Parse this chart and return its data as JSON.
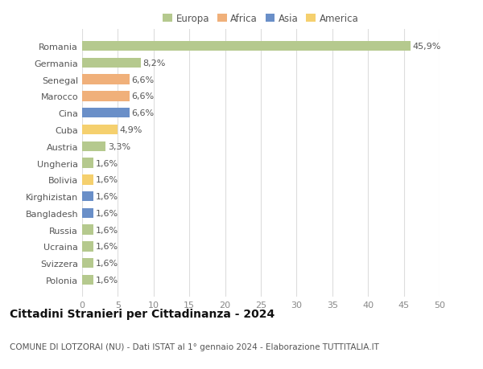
{
  "countries": [
    "Romania",
    "Germania",
    "Senegal",
    "Marocco",
    "Cina",
    "Cuba",
    "Austria",
    "Ungheria",
    "Bolivia",
    "Kirghizistan",
    "Bangladesh",
    "Russia",
    "Ucraina",
    "Svizzera",
    "Polonia"
  ],
  "values": [
    45.9,
    8.2,
    6.6,
    6.6,
    6.6,
    4.9,
    3.3,
    1.6,
    1.6,
    1.6,
    1.6,
    1.6,
    1.6,
    1.6,
    1.6
  ],
  "labels": [
    "45,9%",
    "8,2%",
    "6,6%",
    "6,6%",
    "6,6%",
    "4,9%",
    "3,3%",
    "1,6%",
    "1,6%",
    "1,6%",
    "1,6%",
    "1,6%",
    "1,6%",
    "1,6%",
    "1,6%"
  ],
  "continents": [
    "Europa",
    "Europa",
    "Africa",
    "Africa",
    "Asia",
    "America",
    "Europa",
    "Europa",
    "America",
    "Asia",
    "Asia",
    "Europa",
    "Europa",
    "Europa",
    "Europa"
  ],
  "continent_colors": {
    "Europa": "#b5c98e",
    "Africa": "#f0b07a",
    "Asia": "#6a8fc8",
    "America": "#f5d06e"
  },
  "legend_items": [
    "Europa",
    "Africa",
    "Asia",
    "America"
  ],
  "legend_colors": [
    "#b5c98e",
    "#f0b07a",
    "#6a8fc8",
    "#f5d06e"
  ],
  "title": "Cittadini Stranieri per Cittadinanza - 2024",
  "subtitle": "COMUNE DI LOTZORAI (NU) - Dati ISTAT al 1° gennaio 2024 - Elaborazione TUTTITALIA.IT",
  "xlim": [
    0,
    50
  ],
  "xticks": [
    0,
    5,
    10,
    15,
    20,
    25,
    30,
    35,
    40,
    45,
    50
  ],
  "background_color": "#ffffff",
  "grid_color": "#dddddd",
  "bar_height": 0.6,
  "title_fontsize": 10,
  "subtitle_fontsize": 7.5,
  "tick_fontsize": 8,
  "label_fontsize": 8,
  "legend_fontsize": 8.5
}
